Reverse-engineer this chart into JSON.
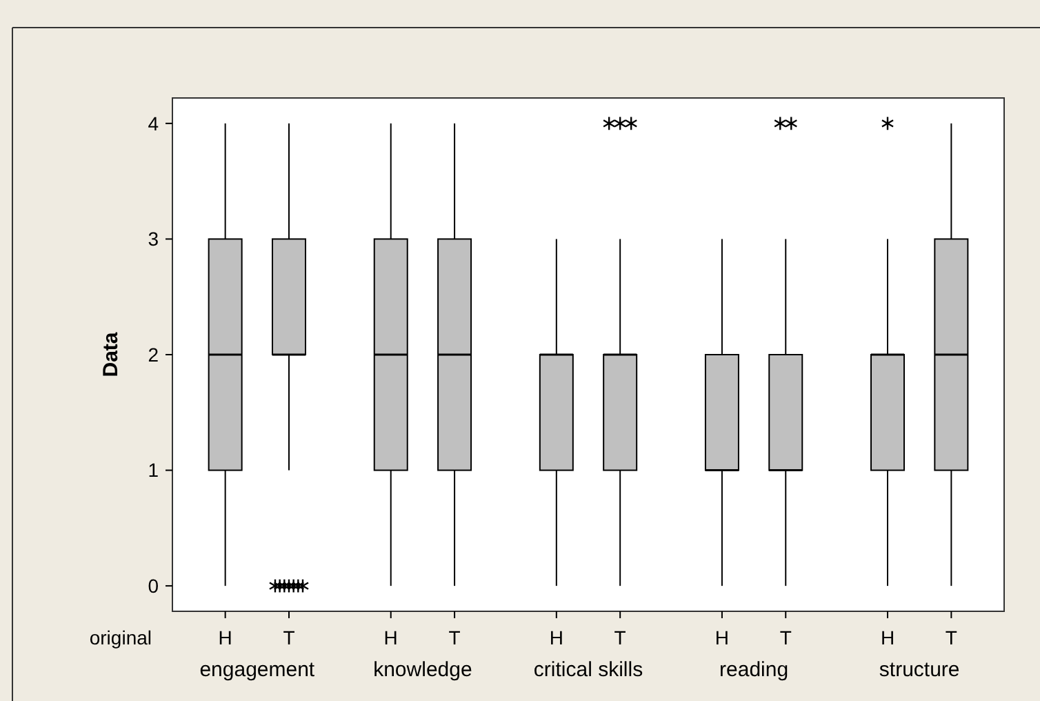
{
  "chart_data": {
    "type": "box",
    "ylabel": "Data",
    "xlabel": "original",
    "categories": [
      "H",
      "T",
      "H",
      "T",
      "H",
      "T",
      "H",
      "T",
      "H",
      "T"
    ],
    "annotations": [
      "engagement",
      "knowledge",
      "critical skills",
      "reading",
      "structure"
    ],
    "color": "#c0c0c0",
    "boxes": [
      {
        "low": 0,
        "q1": 1,
        "median": 2,
        "q3": 3,
        "high": 4
      },
      {
        "low": 1,
        "q1": 2,
        "median": 2,
        "q3": 3,
        "high": 4,
        "outliers": [
          0,
          0,
          0,
          0,
          0,
          0,
          0
        ]
      },
      {
        "low": 0,
        "q1": 1,
        "median": 2,
        "q3": 3,
        "high": 4
      },
      {
        "low": 0,
        "q1": 1,
        "median": 2,
        "q3": 3,
        "high": 4
      },
      {
        "low": 0,
        "q1": 1,
        "median": 2,
        "q3": 2,
        "high": 3
      },
      {
        "low": 0,
        "q1": 1,
        "median": 2,
        "q3": 2,
        "high": 3,
        "outliers": [
          4,
          4,
          4
        ]
      },
      {
        "low": 0,
        "q1": 1,
        "median": 1,
        "q3": 2,
        "high": 3
      },
      {
        "low": 0,
        "q1": 1,
        "median": 1,
        "q3": 2,
        "high": 3,
        "outliers": [
          4,
          4
        ]
      },
      {
        "low": 0,
        "q1": 1,
        "median": 2,
        "q3": 2,
        "high": 3,
        "outliers": [
          4
        ]
      },
      {
        "low": 0,
        "q1": 1,
        "median": 2,
        "q3": 3,
        "high": 4
      }
    ],
    "ylim": [
      -0.22,
      4.22
    ],
    "yticks": [
      0,
      1,
      2,
      3,
      4
    ],
    "grid": false,
    "marker": "cross"
  }
}
